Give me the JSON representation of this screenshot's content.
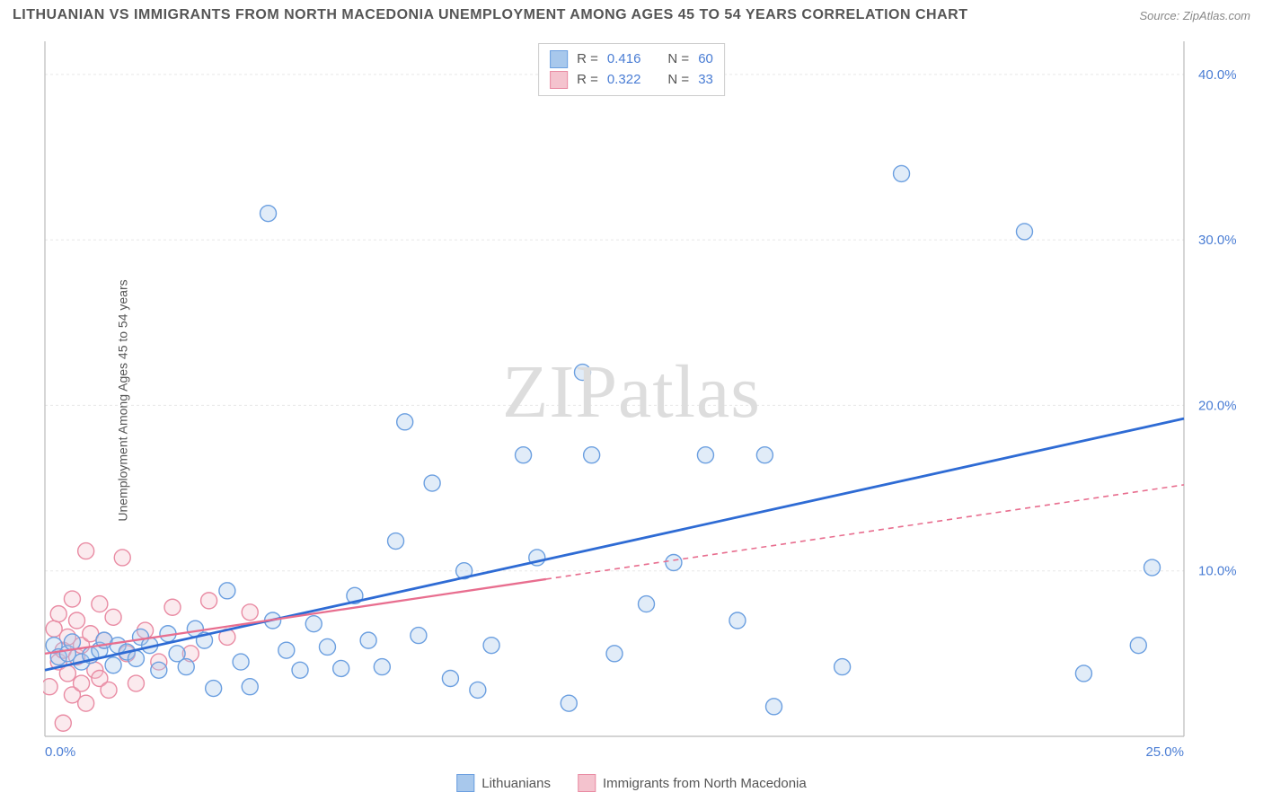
{
  "title": "LITHUANIAN VS IMMIGRANTS FROM NORTH MACEDONIA UNEMPLOYMENT AMONG AGES 45 TO 54 YEARS CORRELATION CHART",
  "source": "Source: ZipAtlas.com",
  "yaxis_label": "Unemployment Among Ages 45 to 54 years",
  "watermark": "ZIPatlas",
  "chart": {
    "type": "scatter",
    "background_color": "#ffffff",
    "grid_color": "#e8e8e8",
    "axis_color": "#bbbbbb",
    "tick_label_color": "#4a7dd4",
    "tick_fontsize": 15,
    "xlim": [
      0,
      25
    ],
    "ylim": [
      0,
      42
    ],
    "xticks": [
      0,
      25
    ],
    "xtick_labels": [
      "0.0%",
      "25.0%"
    ],
    "yticks": [
      10,
      20,
      30,
      40
    ],
    "ytick_labels": [
      "10.0%",
      "20.0%",
      "30.0%",
      "40.0%"
    ],
    "marker_radius": 9,
    "marker_stroke_width": 1.4,
    "marker_fill_opacity": 0.35,
    "series": [
      {
        "name": "Lithuanians",
        "color_fill": "#a8c8ec",
        "color_stroke": "#6b9fe0",
        "R": "0.416",
        "N": "60",
        "regression": {
          "x1": 0,
          "y1": 4.0,
          "x2": 25,
          "y2": 19.2,
          "color": "#2e6bd4",
          "width": 2.8,
          "dash": "none"
        },
        "points": [
          [
            0.2,
            5.5
          ],
          [
            0.3,
            4.8
          ],
          [
            0.5,
            5.0
          ],
          [
            0.6,
            5.7
          ],
          [
            0.8,
            4.5
          ],
          [
            1.0,
            4.9
          ],
          [
            1.2,
            5.2
          ],
          [
            1.3,
            5.8
          ],
          [
            1.5,
            4.3
          ],
          [
            1.6,
            5.5
          ],
          [
            1.8,
            5.1
          ],
          [
            2.0,
            4.7
          ],
          [
            2.1,
            6.0
          ],
          [
            2.3,
            5.5
          ],
          [
            2.5,
            4.0
          ],
          [
            2.7,
            6.2
          ],
          [
            2.9,
            5.0
          ],
          [
            3.1,
            4.2
          ],
          [
            3.3,
            6.5
          ],
          [
            3.5,
            5.8
          ],
          [
            3.7,
            2.9
          ],
          [
            4.0,
            8.8
          ],
          [
            4.3,
            4.5
          ],
          [
            4.5,
            3.0
          ],
          [
            4.9,
            31.6
          ],
          [
            5.0,
            7.0
          ],
          [
            5.3,
            5.2
          ],
          [
            5.6,
            4.0
          ],
          [
            5.9,
            6.8
          ],
          [
            6.2,
            5.4
          ],
          [
            6.5,
            4.1
          ],
          [
            6.8,
            8.5
          ],
          [
            7.1,
            5.8
          ],
          [
            7.4,
            4.2
          ],
          [
            7.7,
            11.8
          ],
          [
            7.9,
            19.0
          ],
          [
            8.2,
            6.1
          ],
          [
            8.5,
            15.3
          ],
          [
            8.9,
            3.5
          ],
          [
            9.2,
            10.0
          ],
          [
            9.5,
            2.8
          ],
          [
            9.8,
            5.5
          ],
          [
            10.5,
            17.0
          ],
          [
            10.8,
            10.8
          ],
          [
            11.5,
            2.0
          ],
          [
            11.8,
            22.0
          ],
          [
            12.0,
            17.0
          ],
          [
            12.5,
            5.0
          ],
          [
            13.2,
            8.0
          ],
          [
            13.8,
            10.5
          ],
          [
            14.5,
            17.0
          ],
          [
            15.2,
            7.0
          ],
          [
            15.8,
            17.0
          ],
          [
            16.0,
            1.8
          ],
          [
            17.5,
            4.2
          ],
          [
            18.8,
            34.0
          ],
          [
            21.5,
            30.5
          ],
          [
            22.8,
            3.8
          ],
          [
            24.0,
            5.5
          ],
          [
            24.3,
            10.2
          ]
        ]
      },
      {
        "name": "Immigrants from North Macedonia",
        "color_fill": "#f4c3ce",
        "color_stroke": "#e98ba3",
        "R": "0.322",
        "N": "33",
        "regression": {
          "x1": 0,
          "y1": 5.0,
          "x2": 11,
          "y2": 9.5,
          "color": "#e86e8f",
          "width": 2.3,
          "dash": "none",
          "extrapolate": {
            "x2": 25,
            "y2": 15.2,
            "dash": "6 5"
          }
        },
        "points": [
          [
            0.1,
            3.0
          ],
          [
            0.2,
            6.5
          ],
          [
            0.3,
            4.5
          ],
          [
            0.3,
            7.4
          ],
          [
            0.4,
            0.8
          ],
          [
            0.4,
            5.2
          ],
          [
            0.5,
            3.8
          ],
          [
            0.5,
            6.0
          ],
          [
            0.6,
            8.3
          ],
          [
            0.6,
            2.5
          ],
          [
            0.7,
            4.8
          ],
          [
            0.7,
            7.0
          ],
          [
            0.8,
            3.2
          ],
          [
            0.8,
            5.5
          ],
          [
            0.9,
            11.2
          ],
          [
            0.9,
            2.0
          ],
          [
            1.0,
            6.2
          ],
          [
            1.1,
            4.0
          ],
          [
            1.2,
            8.0
          ],
          [
            1.2,
            3.5
          ],
          [
            1.3,
            5.8
          ],
          [
            1.4,
            2.8
          ],
          [
            1.5,
            7.2
          ],
          [
            1.7,
            10.8
          ],
          [
            1.8,
            5.0
          ],
          [
            2.0,
            3.2
          ],
          [
            2.2,
            6.4
          ],
          [
            2.5,
            4.5
          ],
          [
            2.8,
            7.8
          ],
          [
            3.2,
            5.0
          ],
          [
            3.6,
            8.2
          ],
          [
            4.0,
            6.0
          ],
          [
            4.5,
            7.5
          ]
        ]
      }
    ],
    "legend_top": {
      "border_color": "#cccccc",
      "rows": [
        {
          "swatch_fill": "#a8c8ec",
          "swatch_stroke": "#6b9fe0",
          "R_label": "R =",
          "R_val": "0.416",
          "N_label": "N =",
          "N_val": "60"
        },
        {
          "swatch_fill": "#f4c3ce",
          "swatch_stroke": "#e98ba3",
          "R_label": "R =",
          "R_val": "0.322",
          "N_label": "N =",
          "N_val": "33"
        }
      ]
    },
    "legend_bottom": [
      {
        "swatch_fill": "#a8c8ec",
        "swatch_stroke": "#6b9fe0",
        "label": "Lithuanians"
      },
      {
        "swatch_fill": "#f4c3ce",
        "swatch_stroke": "#e98ba3",
        "label": "Immigrants from North Macedonia"
      }
    ]
  }
}
